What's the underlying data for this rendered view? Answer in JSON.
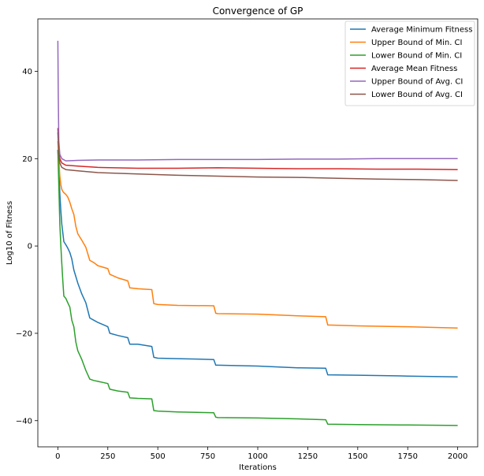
{
  "chart_data": {
    "type": "line",
    "title": "Convergence of GP",
    "xlabel": "Iterations",
    "ylabel": "Log10 of Fitness",
    "xlim": [
      -100,
      2100
    ],
    "ylim": [
      -46,
      52
    ],
    "xticks": [
      0,
      250,
      500,
      750,
      1000,
      1250,
      1500,
      1750,
      2000
    ],
    "yticks": [
      -40,
      -20,
      0,
      20,
      40
    ],
    "grid": false,
    "legend_position": "top-right",
    "series": [
      {
        "name": "Average Minimum Fitness",
        "color": "#1f77b4",
        "x": [
          0,
          5,
          10,
          15,
          20,
          25,
          30,
          40,
          50,
          60,
          70,
          80,
          90,
          100,
          120,
          140,
          160,
          180,
          200,
          250,
          260,
          300,
          350,
          360,
          400,
          470,
          480,
          500,
          600,
          780,
          790,
          800,
          1000,
          1200,
          1340,
          1350,
          1500,
          1750,
          2000
        ],
        "values": [
          22,
          18,
          12,
          8,
          5,
          3,
          1,
          0.3,
          -0.5,
          -1.5,
          -3,
          -5.5,
          -7,
          -8.5,
          -11,
          -13,
          -16.5,
          -17,
          -17.5,
          -18.5,
          -20,
          -20.5,
          -21,
          -22.5,
          -22.5,
          -23,
          -25.5,
          -25.7,
          -25.8,
          -26,
          -27.3,
          -27.3,
          -27.5,
          -27.9,
          -28,
          -29.5,
          -29.6,
          -29.8,
          -30
        ]
      },
      {
        "name": "Upper Bound of Min. CI",
        "color": "#ff7f0e",
        "x": [
          0,
          5,
          10,
          15,
          20,
          25,
          30,
          40,
          50,
          60,
          70,
          80,
          90,
          100,
          120,
          140,
          160,
          180,
          200,
          250,
          260,
          300,
          350,
          360,
          400,
          470,
          480,
          500,
          600,
          780,
          790,
          800,
          1000,
          1200,
          1340,
          1350,
          1500,
          1750,
          2000
        ],
        "values": [
          24,
          20,
          16,
          14,
          13,
          12.5,
          12.2,
          11.8,
          11.2,
          10,
          8.5,
          7.2,
          4.5,
          2.8,
          1.3,
          -0.3,
          -3.3,
          -3.8,
          -4.5,
          -5.2,
          -6.5,
          -7.3,
          -8,
          -9.6,
          -9.8,
          -10,
          -13.2,
          -13.4,
          -13.6,
          -13.7,
          -15.4,
          -15.5,
          -15.6,
          -16,
          -16.2,
          -18.1,
          -18.3,
          -18.5,
          -18.8
        ]
      },
      {
        "name": "Lower Bound of Min. CI",
        "color": "#2ca02c",
        "x": [
          0,
          5,
          10,
          15,
          20,
          25,
          30,
          40,
          50,
          60,
          70,
          80,
          90,
          100,
          120,
          140,
          160,
          180,
          200,
          250,
          260,
          300,
          350,
          360,
          400,
          470,
          480,
          500,
          600,
          780,
          790,
          800,
          1000,
          1200,
          1340,
          1350,
          1500,
          1750,
          2000
        ],
        "values": [
          22,
          14,
          5,
          0,
          -4,
          -8,
          -11.5,
          -12,
          -13,
          -14,
          -17,
          -18.5,
          -22,
          -24,
          -26,
          -28.5,
          -30.5,
          -30.8,
          -31,
          -31.5,
          -32.8,
          -33.2,
          -33.5,
          -34.8,
          -34.9,
          -35,
          -37.7,
          -37.8,
          -38,
          -38.2,
          -39.2,
          -39.3,
          -39.4,
          -39.6,
          -39.8,
          -40.8,
          -40.9,
          -41,
          -41.1
        ]
      },
      {
        "name": "Average Mean Fitness",
        "color": "#d62728",
        "x": [
          0,
          5,
          10,
          20,
          40,
          100,
          200,
          400,
          600,
          800,
          1000,
          1200,
          1400,
          1600,
          1800,
          2000
        ],
        "values": [
          27,
          22,
          20,
          19,
          18.5,
          18.3,
          18,
          17.8,
          17.8,
          17.9,
          17.8,
          17.7,
          17.7,
          17.6,
          17.6,
          17.5
        ]
      },
      {
        "name": "Upper Bound of Avg. CI",
        "color": "#9467bd",
        "x": [
          0,
          2,
          5,
          10,
          20,
          40,
          100,
          200,
          400,
          600,
          800,
          1000,
          1200,
          1400,
          1600,
          1800,
          2000
        ],
        "values": [
          47,
          35,
          24,
          21,
          20,
          19.5,
          19.6,
          19.7,
          19.7,
          19.8,
          19.8,
          19.8,
          19.9,
          19.9,
          20,
          20,
          20
        ]
      },
      {
        "name": "Lower Bound of Avg. CI",
        "color": "#8c564b",
        "x": [
          0,
          2,
          5,
          10,
          20,
          40,
          100,
          200,
          400,
          600,
          800,
          1000,
          1200,
          1400,
          1600,
          1800,
          2000
        ],
        "values": [
          26,
          24,
          21,
          19,
          18,
          17.5,
          17.2,
          16.8,
          16.5,
          16.2,
          16,
          15.8,
          15.7,
          15.5,
          15.3,
          15.2,
          15
        ]
      }
    ]
  }
}
